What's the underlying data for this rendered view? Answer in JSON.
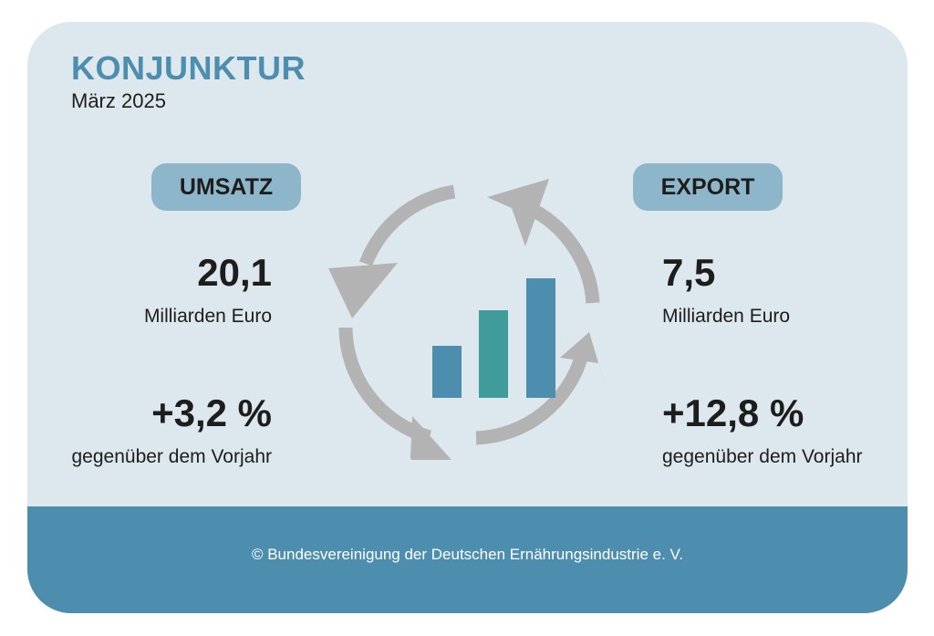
{
  "header": {
    "title": "KONJUNKTUR",
    "subtitle": "März 2025"
  },
  "umsatz": {
    "label": "UMSATZ",
    "value": "20,1",
    "unit": "Milliarden Euro",
    "change": "+3,2 %",
    "change_note": "gegenüber dem Vorjahr"
  },
  "export": {
    "label": "EXPORT",
    "value": "7,5",
    "unit": "Milliarden Euro",
    "change": "+12,8 %",
    "change_note": "gegenüber dem Vorjahr"
  },
  "icon": {
    "name": "cycle-growth-bars-icon",
    "bar_colors": [
      "#4d8eae",
      "#3f9c9a",
      "#4d8eae"
    ],
    "arrow_color": "#b3b3b3"
  },
  "footer": {
    "copyright": "© Bundesvereinigung der Deutschen Ernährungsindustrie e. V."
  },
  "colors": {
    "accent": "#4d8eae",
    "pill": "#8db6cb",
    "background": "#dde8ee"
  }
}
